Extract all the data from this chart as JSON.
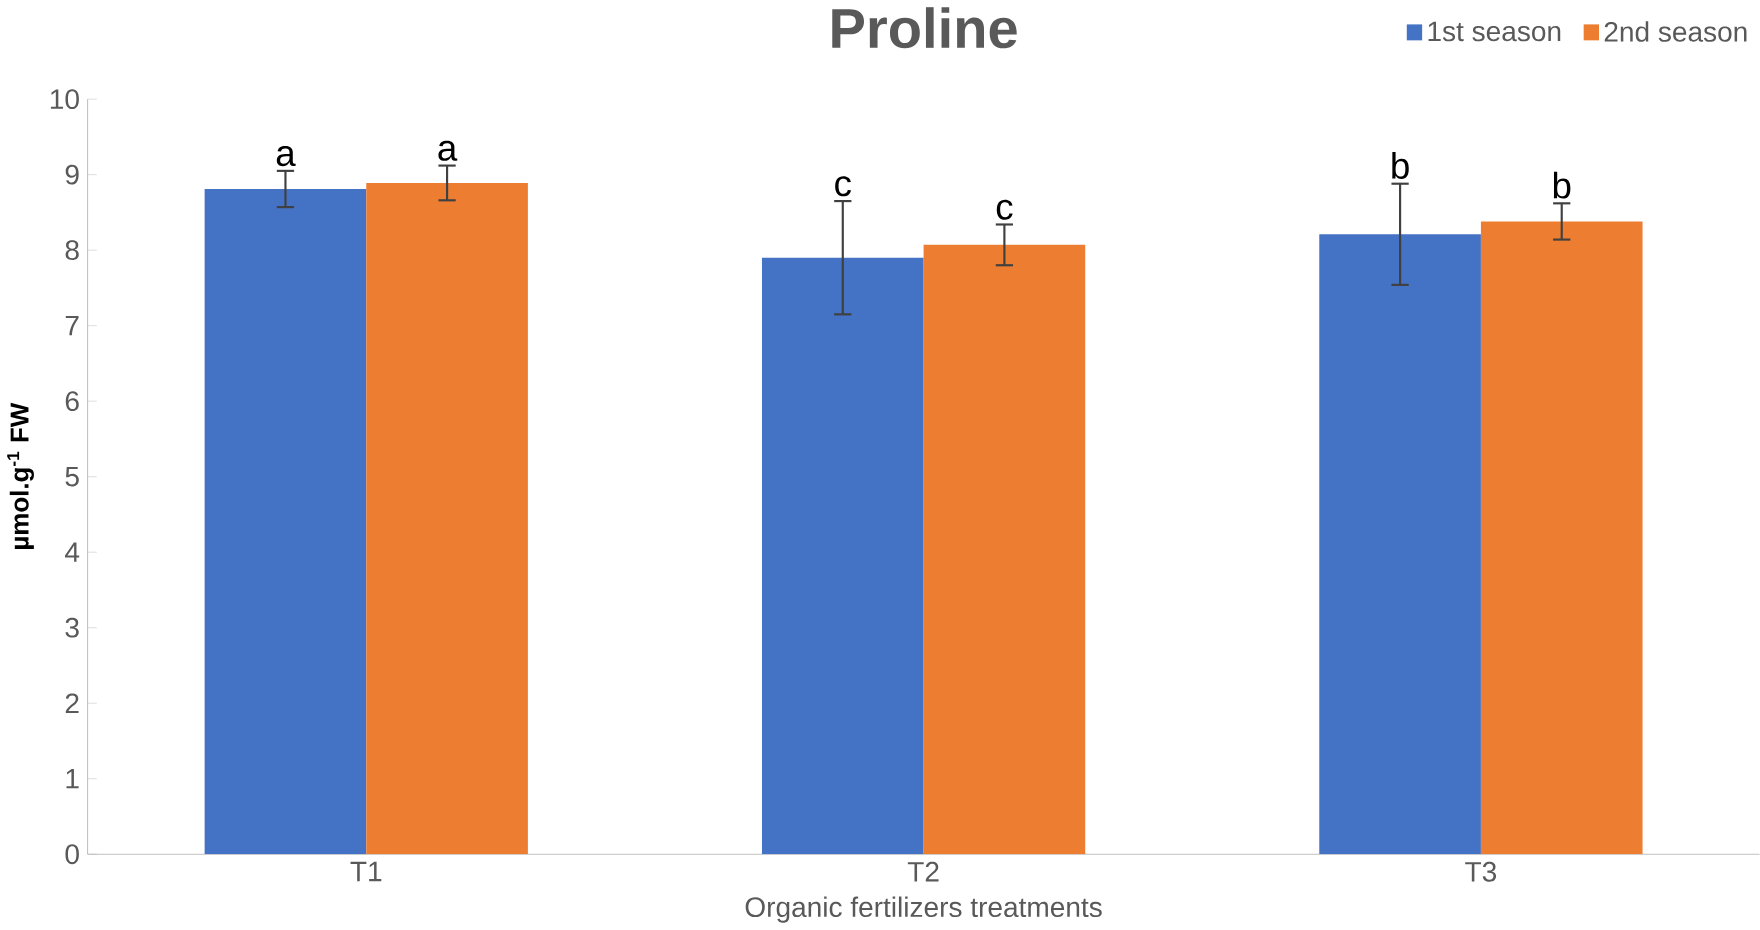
{
  "chart_data": {
    "type": "bar",
    "title": "Proline",
    "xlabel": "Organic fertilizers treatments",
    "ylabel": "µmol.g$^{-1}$ FW",
    "categories": [
      "T1",
      "T2",
      "T3"
    ],
    "series": [
      {
        "name": "1st season",
        "color": "#4472c4",
        "values": [
          8.81,
          7.9,
          8.21
        ],
        "errors": [
          0.24,
          0.75,
          0.67
        ],
        "value_labels": [
          "a",
          "c",
          "b"
        ]
      },
      {
        "name": "2nd season",
        "color": "#ed7d31",
        "values": [
          8.89,
          8.07,
          8.38
        ],
        "errors": [
          0.23,
          0.27,
          0.24
        ],
        "value_labels": [
          "a",
          "c",
          "b"
        ]
      }
    ],
    "ylim": [
      0,
      10
    ],
    "yticks": [
      0,
      1,
      2,
      3,
      4,
      5,
      6,
      7,
      8,
      9,
      10
    ],
    "legend": "top right",
    "grid": false
  }
}
